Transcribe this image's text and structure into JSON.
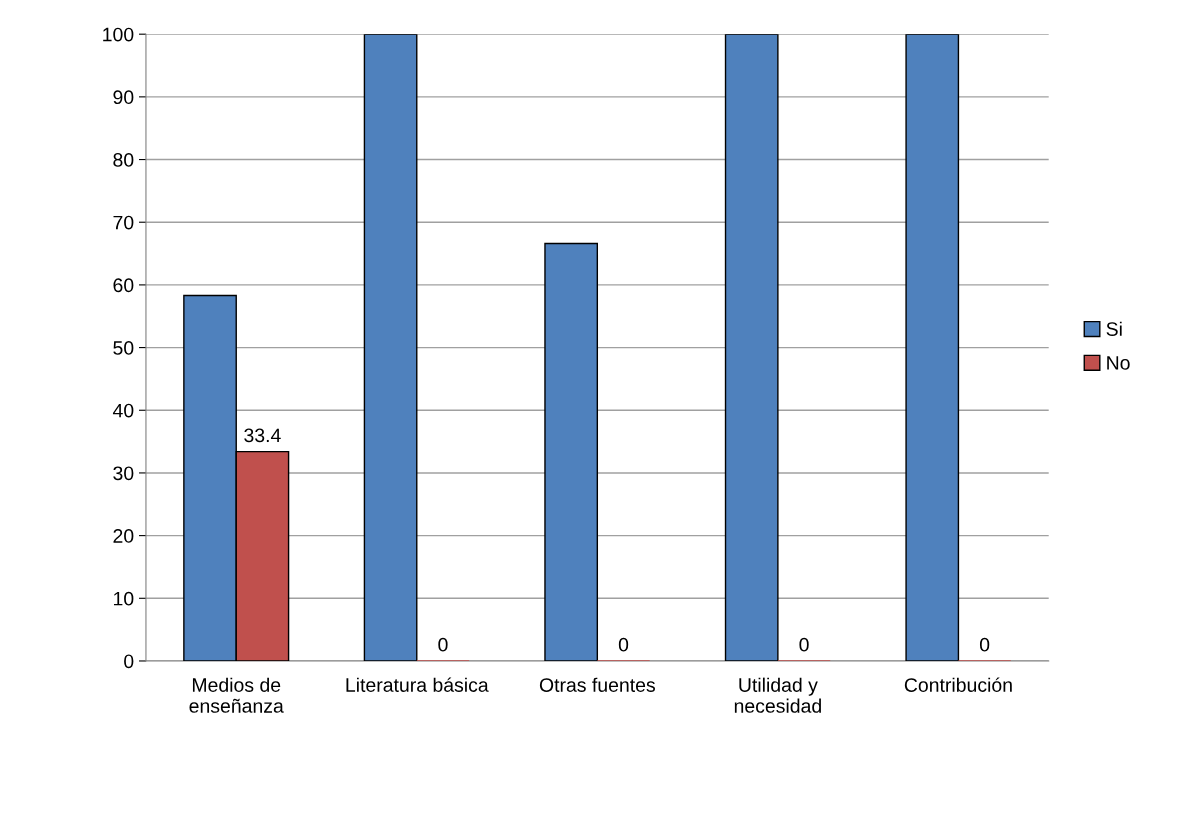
{
  "chart_data": {
    "type": "bar",
    "categories": [
      "Medios de\nenseñanza",
      "Literatura básica",
      "Otras fuentes",
      "Utilidad y\nnecesidad",
      "Contribución"
    ],
    "series": [
      {
        "name": "Si",
        "color": "#4f81bd",
        "values": [
          58.3,
          100,
          66.6,
          100,
          100
        ]
      },
      {
        "name": "No",
        "color": "#c0504d",
        "values": [
          33.4,
          0,
          0,
          0,
          0
        ],
        "value_labels": [
          "33.4",
          "0",
          "0",
          "0",
          "0"
        ]
      }
    ],
    "ylim": [
      0,
      100
    ],
    "yticks": [
      0,
      10,
      20,
      30,
      40,
      50,
      60,
      70,
      80,
      90,
      100
    ],
    "grid": "y",
    "legend": "right"
  }
}
